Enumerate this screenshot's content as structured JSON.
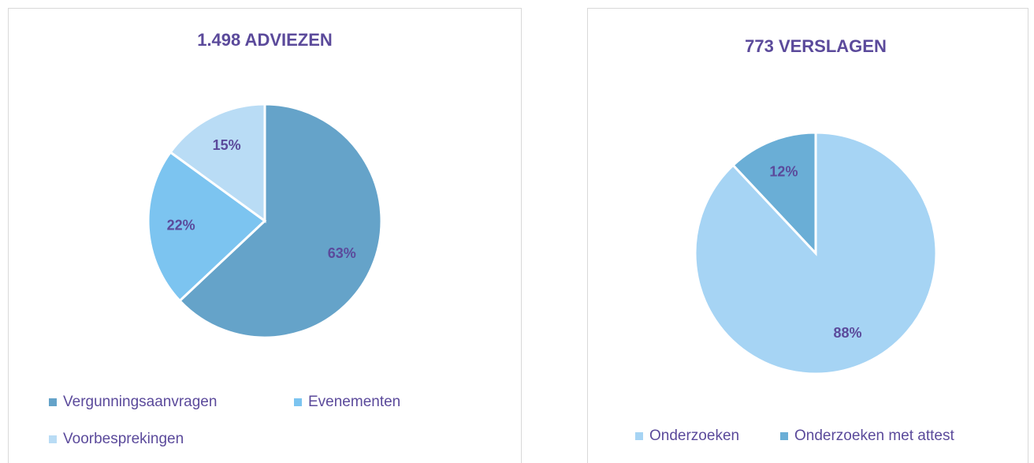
{
  "chart_data": [
    {
      "type": "pie",
      "title": "1.498 ADVIEZEN",
      "categories": [
        "Vergunningsaanvragen",
        "Evenementen",
        "Voorbesprekingen"
      ],
      "values": [
        63,
        22,
        15
      ],
      "value_labels": [
        "63%",
        "22%",
        "15%"
      ],
      "colors": [
        "#65a3c9",
        "#7cc4f0",
        "#b9dcf5"
      ],
      "legend": "bottom"
    },
    {
      "type": "pie",
      "title": "773 VERSLAGEN",
      "categories": [
        "Onderzoeken",
        "Onderzoeken met attest"
      ],
      "values": [
        88,
        12
      ],
      "value_labels": [
        "88%",
        "12%"
      ],
      "colors": [
        "#a6d4f4",
        "#6aaed6"
      ],
      "legend": "bottom"
    }
  ]
}
